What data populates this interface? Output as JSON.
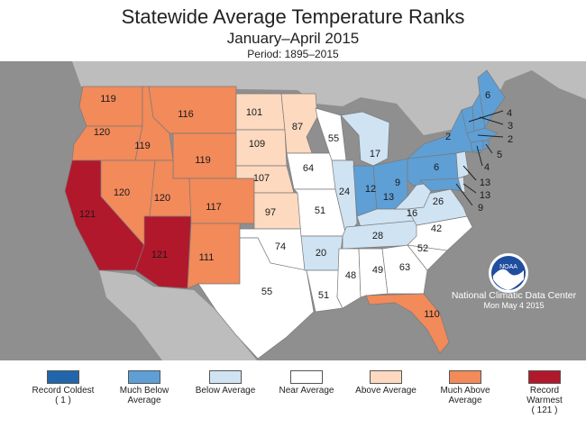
{
  "title": "Statewide Average Temperature Ranks",
  "subtitle": "January–April 2015",
  "period": "Period: 1895–2015",
  "agency": {
    "name": "National Climatic Data Center",
    "date": "Mon May  4 2015",
    "logo_text": "NOAA"
  },
  "legend": [
    {
      "label": "Record Coldest",
      "sub": "( 1 )",
      "color": "#2166ac"
    },
    {
      "label": "Much Below Average",
      "sub": "",
      "color": "#5e9fd6"
    },
    {
      "label": "Below Average",
      "sub": "",
      "color": "#cfe3f3"
    },
    {
      "label": "Near Average",
      "sub": "",
      "color": "#ffffff"
    },
    {
      "label": "Above Average",
      "sub": "",
      "color": "#fdd9bf"
    },
    {
      "label": "Much Above Average",
      "sub": "",
      "color": "#f28a5a"
    },
    {
      "label": "Record Warmest",
      "sub": "( 121 )",
      "color": "#b2182b"
    }
  ],
  "states": {
    "WA": {
      "rank": "119",
      "category": "much_above"
    },
    "OR": {
      "rank": "120",
      "category": "much_above"
    },
    "CA": {
      "rank": "121",
      "category": "record_warmest"
    },
    "ID": {
      "rank": "119",
      "category": "much_above"
    },
    "NV": {
      "rank": "120",
      "category": "much_above"
    },
    "AZ": {
      "rank": "121",
      "category": "record_warmest"
    },
    "MT": {
      "rank": "116",
      "category": "much_above"
    },
    "WY": {
      "rank": "119",
      "category": "much_above"
    },
    "UT": {
      "rank": "120",
      "category": "much_above"
    },
    "CO": {
      "rank": "117",
      "category": "much_above"
    },
    "NM": {
      "rank": "111",
      "category": "much_above"
    },
    "ND": {
      "rank": "101",
      "category": "above"
    },
    "SD": {
      "rank": "109",
      "category": "above"
    },
    "NE": {
      "rank": "107",
      "category": "above"
    },
    "KS": {
      "rank": "97",
      "category": "above"
    },
    "MN": {
      "rank": "87",
      "category": "above"
    },
    "OK": {
      "rank": "74",
      "category": "near"
    },
    "TX": {
      "rank": "55",
      "category": "near"
    },
    "IA": {
      "rank": "64",
      "category": "near"
    },
    "MO": {
      "rank": "51",
      "category": "near"
    },
    "AR": {
      "rank": "20",
      "category": "below"
    },
    "LA": {
      "rank": "51",
      "category": "near"
    },
    "WI": {
      "rank": "55",
      "category": "near"
    },
    "IL": {
      "rank": "24",
      "category": "below"
    },
    "MI": {
      "rank": "17",
      "category": "below"
    },
    "IN": {
      "rank": "12",
      "category": "much_below"
    },
    "OH": {
      "rank": "9",
      "category": "much_below"
    },
    "KY": {
      "rank": "13",
      "category": "below"
    },
    "TN": {
      "rank": "28",
      "category": "below"
    },
    "MS": {
      "rank": "48",
      "category": "near"
    },
    "AL": {
      "rank": "49",
      "category": "near"
    },
    "GA": {
      "rank": "63",
      "category": "near"
    },
    "FL": {
      "rank": "110",
      "category": "much_above"
    },
    "SC": {
      "rank": "52",
      "category": "near"
    },
    "NC": {
      "rank": "42",
      "category": "near"
    },
    "VA": {
      "rank": "26",
      "category": "below"
    },
    "WV": {
      "rank": "16",
      "category": "below"
    },
    "PA": {
      "rank": "6",
      "category": "much_below"
    },
    "NY": {
      "rank": "2",
      "category": "much_below"
    },
    "ME": {
      "rank": "6",
      "category": "much_below"
    },
    "VT": {
      "rank": "4",
      "category": "much_below"
    },
    "NH": {
      "rank": "3",
      "category": "much_below"
    },
    "MA": {
      "rank": "2",
      "category": "much_below"
    },
    "RI": {
      "rank": "5",
      "category": "much_below"
    },
    "CT": {
      "rank": "4",
      "category": "much_below"
    },
    "NJ": {
      "rank": "13",
      "category": "below"
    },
    "DE": {
      "rank": "13",
      "category": "below"
    },
    "MD": {
      "rank": "9",
      "category": "much_below"
    }
  }
}
